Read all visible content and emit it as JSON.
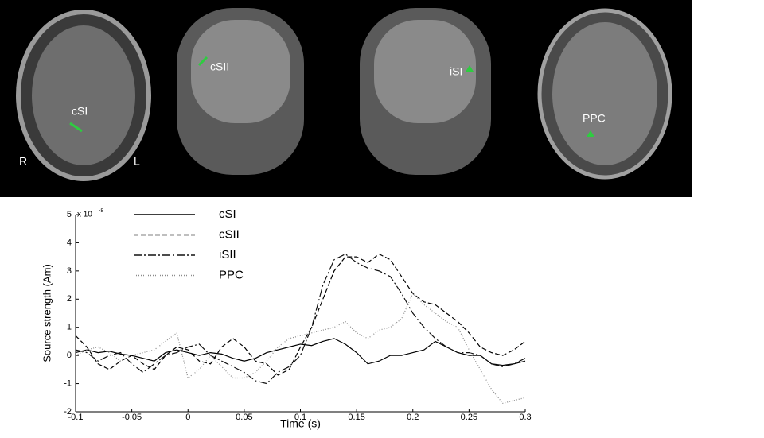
{
  "images": {
    "labels": [
      "cSI",
      "cSII",
      "iSI",
      "PPC",
      "R",
      "L"
    ]
  },
  "chart_data": {
    "type": "line",
    "x_label": "Time (s)",
    "y_label": "Source strength (Am)",
    "y_multiplier": {
      "base": "x 10",
      "exponent": "-8"
    },
    "x": [
      -0.1,
      -0.09,
      -0.08,
      -0.07,
      -0.06,
      -0.05,
      -0.04,
      -0.03,
      -0.02,
      -0.01,
      0,
      0.01,
      0.02,
      0.03,
      0.04,
      0.05,
      0.06,
      0.07,
      0.08,
      0.09,
      0.1,
      0.11,
      0.12,
      0.13,
      0.14,
      0.15,
      0.16,
      0.17,
      0.18,
      0.19,
      0.2,
      0.21,
      0.22,
      0.23,
      0.24,
      0.25,
      0.26,
      0.27,
      0.28,
      0.29,
      0.3
    ],
    "xlim": [
      -0.1,
      0.3
    ],
    "xticks": [
      -0.1,
      -0.05,
      0,
      0.05,
      0.1,
      0.15,
      0.2,
      0.25,
      0.3
    ],
    "ylim": [
      -2,
      5
    ],
    "yticks": [
      -2,
      -1,
      0,
      1,
      2,
      3,
      4,
      5
    ],
    "series": [
      {
        "name": "cSI",
        "color": "#000000",
        "dash": "solid",
        "values": [
          0.1,
          0.2,
          0.1,
          0.15,
          0.05,
          0,
          -0.1,
          -0.2,
          0.1,
          0.2,
          0.1,
          0,
          0.1,
          0.05,
          -0.1,
          -0.2,
          -0.1,
          0.1,
          0.2,
          0.3,
          0.4,
          0.35,
          0.5,
          0.6,
          0.4,
          0.1,
          -0.3,
          -0.2,
          0,
          0,
          0.1,
          0.2,
          0.5,
          0.3,
          0.1,
          0,
          0,
          -0.3,
          -0.35,
          -0.3,
          -0.2
        ]
      },
      {
        "name": "cSII",
        "color": "#000000",
        "dash": "dashed",
        "values": [
          0.7,
          0.3,
          -0.3,
          -0.5,
          -0.2,
          0,
          -0.3,
          -0.5,
          0,
          0.3,
          0.2,
          -0.2,
          -0.3,
          0.3,
          0.6,
          0.3,
          -0.2,
          -0.3,
          -0.7,
          -0.5,
          0.3,
          1.0,
          2.0,
          3.0,
          3.5,
          3.5,
          3.3,
          3.6,
          3.4,
          2.8,
          2.2,
          1.9,
          1.8,
          1.5,
          1.2,
          0.8,
          0.3,
          0.1,
          0,
          0.2,
          0.5
        ]
      },
      {
        "name": "iSII",
        "color": "#111111",
        "dash": "dashdot",
        "values": [
          0.2,
          0.1,
          -0.2,
          0,
          0.1,
          -0.3,
          -0.6,
          -0.3,
          0,
          0.1,
          0.3,
          0.4,
          0,
          -0.2,
          -0.4,
          -0.6,
          -0.9,
          -1.0,
          -0.6,
          -0.4,
          0,
          1.0,
          2.5,
          3.4,
          3.6,
          3.3,
          3.1,
          3.0,
          2.8,
          2.2,
          1.5,
          1.0,
          0.6,
          0.3,
          0.1,
          0.1,
          0,
          -0.3,
          -0.4,
          -0.3,
          -0.1
        ]
      },
      {
        "name": "PPC",
        "color": "#8a8a8a",
        "dash": "dotted",
        "values": [
          0,
          0.2,
          0.3,
          0.1,
          -0.2,
          0,
          0.1,
          0.2,
          0.5,
          0.8,
          -0.8,
          -0.5,
          0,
          -0.4,
          -0.8,
          -0.8,
          -0.6,
          -0.2,
          0.3,
          0.6,
          0.7,
          0.8,
          0.9,
          1.0,
          1.2,
          0.8,
          0.6,
          0.9,
          1.0,
          1.3,
          2.2,
          1.8,
          1.5,
          1.2,
          1.0,
          0.2,
          -0.5,
          -1.2,
          -1.7,
          -1.6,
          -1.5
        ]
      }
    ]
  }
}
